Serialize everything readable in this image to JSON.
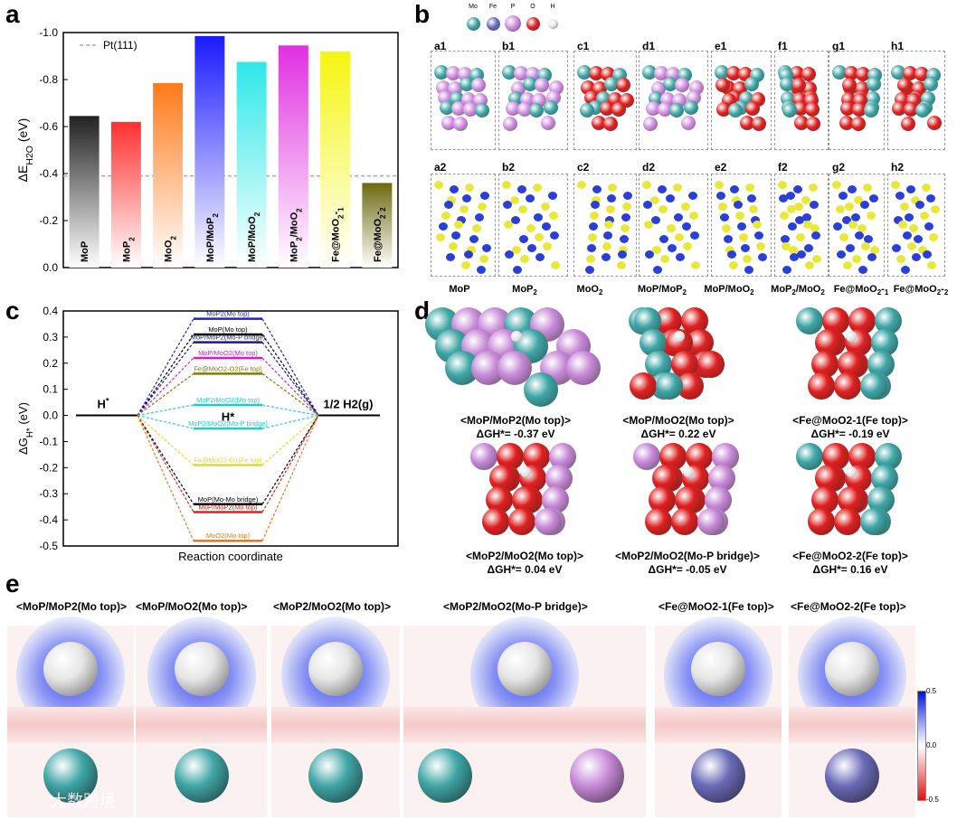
{
  "panels": {
    "a": "a",
    "b": "b",
    "c": "c",
    "d": "d",
    "e": "e"
  },
  "chart_data": [
    {
      "type": "bar",
      "panel": "a",
      "ylabel_main": "ΔE",
      "ylabel_sub": "H2O",
      "ylabel_unit": "(eV)",
      "ylim": [
        0.0,
        -1.0
      ],
      "yticks": [
        "-1.0",
        "-0.8",
        "-0.6",
        "-0.4",
        "-0.2",
        "0.0"
      ],
      "reference": {
        "name": "Pt(111)",
        "value": -0.39
      },
      "categories": [
        "MoP",
        "MoP2",
        "MoO2",
        "MoP/MoP2",
        "MoP/MoO2",
        "MoP2/MoO2",
        "Fe@MoO2-1",
        "Fe@MoO2-2"
      ],
      "values": [
        -0.645,
        -0.62,
        -0.785,
        -0.985,
        -0.875,
        -0.945,
        -0.92,
        -0.36
      ],
      "colors": [
        "#222222",
        "#ff3030",
        "#ff7a1a",
        "#1a1aff",
        "#2ee8e8",
        "#e030e0",
        "#f5f510",
        "#6e6a10"
      ]
    },
    {
      "type": "line",
      "panel": "c",
      "ylabel_main": "ΔG",
      "ylabel_sub": "H*",
      "ylabel_unit": "(eV)",
      "xlabel": "Reaction coordinate",
      "ylim": [
        -0.5,
        0.4
      ],
      "yticks": [
        "0.4",
        "0.3",
        "0.2",
        "0.1",
        "0.0",
        "-0.1",
        "-0.2",
        "-0.3",
        "-0.4",
        "-0.5"
      ],
      "left_state": "H*",
      "center_state": "H*",
      "right_state": "1/2 H2(g)",
      "levels": [
        {
          "label": "MoP2(Mo top)",
          "value": 0.37,
          "color": "#2222cc"
        },
        {
          "label": "MoP(Mo top)",
          "value": 0.31,
          "color": "#000000"
        },
        {
          "label": "MoP/MoP2(Mo-P bridge)",
          "value": 0.28,
          "color": "#1a1a88"
        },
        {
          "label": "MoP/MoO2(Mo top)",
          "value": 0.22,
          "color": "#cc22cc"
        },
        {
          "label": "Fe@MoO2-O2(Fe top)",
          "value": 0.16,
          "color": "#807a10"
        },
        {
          "label": "MoP2/MoO2(Mo top)",
          "value": 0.04,
          "color": "#22cccc"
        },
        {
          "label": "MoP2/MoO2(Mo-P bridge)",
          "value": -0.05,
          "color": "#22cccc"
        },
        {
          "label": "Fe@MoO2-O1(Fe top)",
          "value": -0.19,
          "color": "#dddd22"
        },
        {
          "label": "MoP(Mo-Mo bridge)",
          "value": -0.34,
          "color": "#000000"
        },
        {
          "label": "MoP/MoP2(Mo top)",
          "value": -0.37,
          "color": "#dd2222"
        },
        {
          "label": "MoO2(Mo top)",
          "value": -0.48,
          "color": "#ee7711"
        }
      ]
    }
  ],
  "b": {
    "legend": [
      "Mo",
      "Fe",
      "P",
      "O",
      "H"
    ],
    "legend_colors": [
      "#3fa6a6",
      "#6a6ac0",
      "#d08ee0",
      "#e02020",
      "#e8e8e8"
    ],
    "row1": [
      "a1",
      "b1",
      "c1",
      "d1",
      "e1",
      "f1",
      "g1",
      "h1"
    ],
    "row2": [
      "a2",
      "b2",
      "c2",
      "d2",
      "e2",
      "f2",
      "g2",
      "h2"
    ],
    "captions": [
      "MoP",
      "MoP2",
      "MoO2",
      "MoP/MoP2",
      "MoP/MoO2",
      "MoP2/MoO2",
      "Fe@MoO2-1",
      "Fe@MoO2-2"
    ]
  },
  "d": {
    "items": [
      {
        "name": "<MoP/MoP2(Mo top)>",
        "dg": "ΔGH*= -0.37 eV"
      },
      {
        "name": "<MoP/MoO2(Mo top)>",
        "dg": "ΔGH*= 0.22 eV"
      },
      {
        "name": "<Fe@MoO2-1(Fe top)>",
        "dg": "ΔGH*= -0.19 eV"
      },
      {
        "name": "<MoP2/MoO2(Mo top)>",
        "dg": "ΔGH*= 0.04 eV"
      },
      {
        "name": "<MoP2/MoO2(Mo-P bridge)>",
        "dg": "ΔGH*= -0.05 eV"
      },
      {
        "name": "<Fe@MoO2-2(Fe top)>",
        "dg": "ΔGH*= 0.16 eV"
      }
    ]
  },
  "e": {
    "titles": [
      "<MoP/MoP2(Mo top)>",
      "<MoP/MoO2(Mo top)>",
      "<MoP2/MoO2(Mo top)>",
      "<MoP2/MoO2(Mo-P bridge)>",
      "<Fe@MoO2-1(Fe top)>",
      "<Fe@MoO2-2(Fe top)>"
    ],
    "colorbar_max": "0.5",
    "colorbar_mid": "0.0",
    "colorbar_min": "-0.5",
    "watermark": "大数跨境"
  }
}
